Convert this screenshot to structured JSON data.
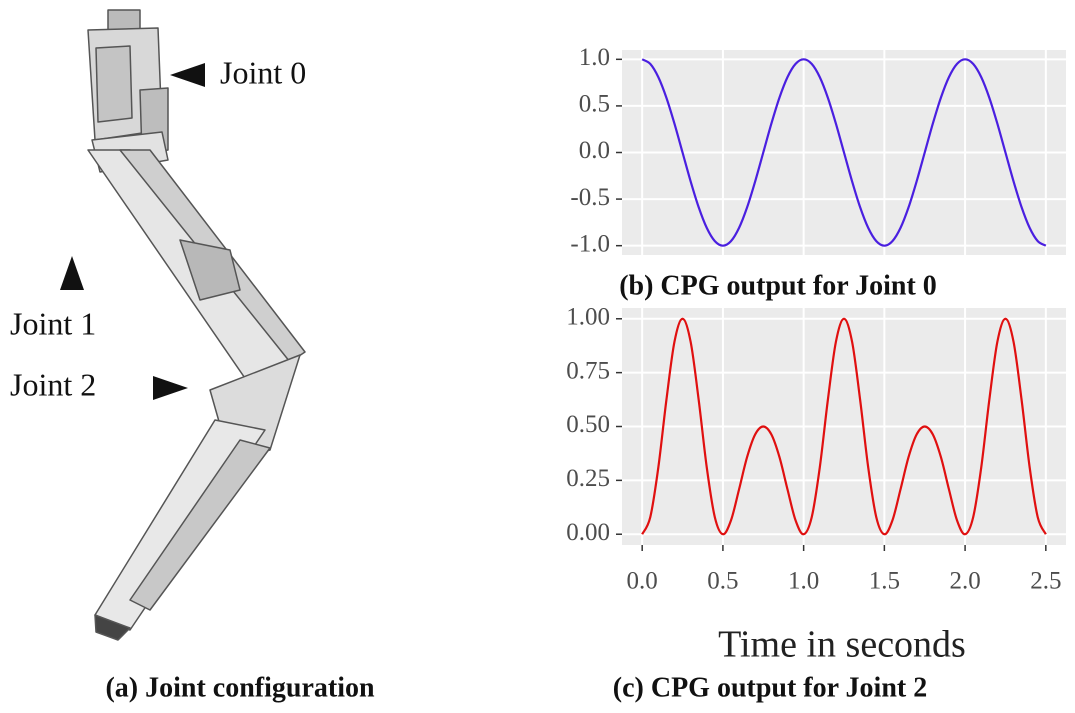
{
  "figure": {
    "joint_labels": [
      "Joint 0",
      "Joint 1",
      "Joint 2"
    ],
    "caption": "(a) Joint configuration"
  },
  "chart_data": [
    {
      "type": "line",
      "caption": "(b) CPG output for Joint 0",
      "color": "#4a1fe0",
      "x": [
        0,
        0.05,
        0.1,
        0.15,
        0.2,
        0.25,
        0.3,
        0.35,
        0.4,
        0.45,
        0.5,
        0.55,
        0.6,
        0.65,
        0.7,
        0.75,
        0.8,
        0.85,
        0.9,
        0.95,
        1,
        1.05,
        1.1,
        1.15,
        1.2,
        1.25,
        1.3,
        1.35,
        1.4,
        1.45,
        1.5,
        1.55,
        1.6,
        1.65,
        1.7,
        1.75,
        1.8,
        1.85,
        1.9,
        1.95,
        2,
        2.05,
        2.1,
        2.15,
        2.2,
        2.25,
        2.3,
        2.35,
        2.4,
        2.45,
        2.5
      ],
      "values": [
        1,
        0.9511,
        0.809,
        0.5878,
        0.309,
        0,
        -0.309,
        -0.5878,
        -0.809,
        -0.9511,
        -1,
        -0.9511,
        -0.809,
        -0.5878,
        -0.309,
        0,
        0.309,
        0.5878,
        0.809,
        0.9511,
        1,
        0.9511,
        0.809,
        0.5878,
        0.309,
        0,
        -0.309,
        -0.5878,
        -0.809,
        -0.9511,
        -1,
        -0.9511,
        -0.809,
        -0.5878,
        -0.309,
        0,
        0.309,
        0.5878,
        0.809,
        0.9511,
        1,
        0.9511,
        0.809,
        0.5878,
        0.309,
        0,
        -0.309,
        -0.5878,
        -0.809,
        -0.9511,
        -1
      ],
      "xlim": [
        -0.125,
        2.625
      ],
      "xticks": [
        0,
        0.5,
        1,
        1.5,
        2,
        2.5
      ],
      "ylim": [
        -1.1,
        1.1
      ],
      "yticks": [
        {
          "value": 1,
          "label": "1.0"
        },
        0.5,
        {
          "value": 0,
          "label": "0.0"
        },
        -0.5,
        {
          "value": -1,
          "label": "-1.0"
        }
      ],
      "grid": true
    },
    {
      "type": "line",
      "caption": "(c) CPG output for Joint 2",
      "xlabel": "Time in seconds",
      "color": "#e01010",
      "x": [
        0,
        0.05,
        0.1,
        0.15,
        0.2,
        0.25,
        0.3,
        0.35,
        0.4,
        0.45,
        0.5,
        0.55,
        0.6,
        0.65,
        0.7,
        0.75,
        0.8,
        0.85,
        0.9,
        0.95,
        1,
        1.05,
        1.1,
        1.15,
        1.2,
        1.25,
        1.3,
        1.35,
        1.4,
        1.45,
        1.5,
        1.55,
        1.6,
        1.65,
        1.7,
        1.75,
        1.8,
        1.85,
        1.9,
        1.95,
        2,
        2.05,
        2.1,
        2.15,
        2.2,
        2.25,
        2.3,
        2.35,
        2.4,
        2.45,
        2.5
      ],
      "values": [
        0,
        0.079,
        0.31,
        0.6233,
        0.8935,
        1,
        0.8935,
        0.6233,
        0.31,
        0.079,
        0,
        0.0642,
        0.2083,
        0.3585,
        0.4633,
        0.5,
        0.4633,
        0.3585,
        0.2083,
        0.0642,
        0,
        0.079,
        0.31,
        0.6233,
        0.8935,
        1,
        0.8935,
        0.6233,
        0.31,
        0.079,
        0,
        0.0642,
        0.2083,
        0.3585,
        0.4633,
        0.5,
        0.4633,
        0.3585,
        0.2083,
        0.0642,
        0,
        0.079,
        0.31,
        0.6233,
        0.8935,
        1,
        0.8935,
        0.6233,
        0.31,
        0.079,
        0
      ],
      "xlim": [
        -0.125,
        2.625
      ],
      "xticks": [
        {
          "value": 0,
          "label": "0.0"
        },
        0.5,
        {
          "value": 1,
          "label": "1.0"
        },
        1.5,
        {
          "value": 2,
          "label": "2.0"
        },
        2.5
      ],
      "ylim": [
        -0.05,
        1.05
      ],
      "yticks": [
        {
          "value": 1,
          "label": "1.00"
        },
        {
          "value": 0.75,
          "label": "0.75"
        },
        {
          "value": 0.5,
          "label": "0.50"
        },
        {
          "value": 0.25,
          "label": "0.25"
        },
        {
          "value": 0,
          "label": "0.00"
        }
      ],
      "grid": true
    }
  ]
}
